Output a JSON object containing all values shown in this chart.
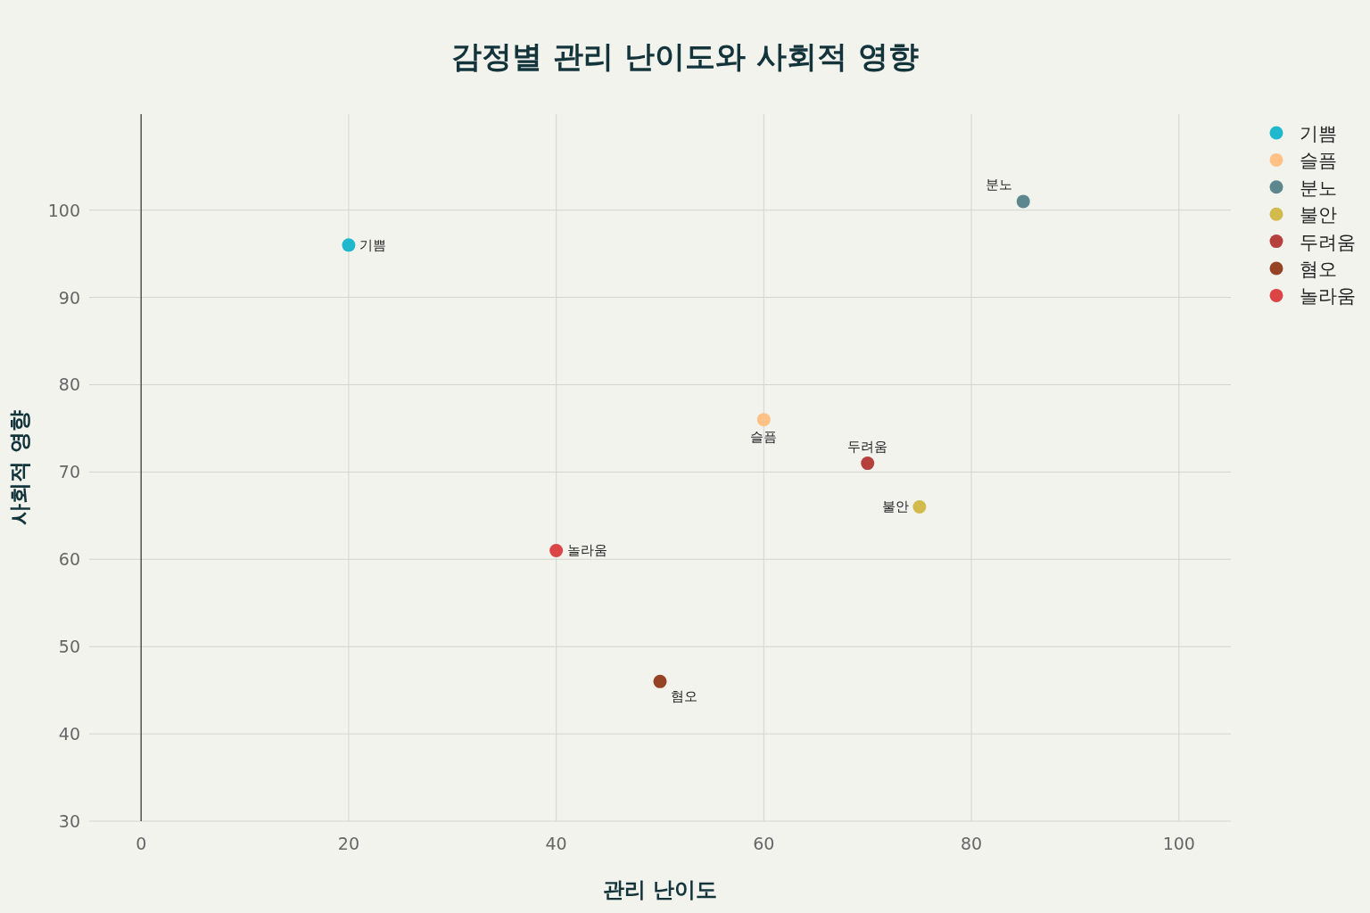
{
  "chart_data": {
    "type": "scatter",
    "title": "감정별 관리 난이도와 사회적 영향",
    "xlabel": "관리 난이도",
    "ylabel": "사회적 영향",
    "series": [
      {
        "name": "기쁨",
        "color": "#1fb8cd",
        "x": [
          20
        ],
        "values": [
          96
        ]
      },
      {
        "name": "슬픔",
        "color": "#ffc185",
        "x": [
          60
        ],
        "values": [
          76
        ]
      },
      {
        "name": "분노",
        "color": "#5d878f",
        "x": [
          85
        ],
        "values": [
          101
        ]
      },
      {
        "name": "불안",
        "color": "#d2ba4c",
        "x": [
          75
        ],
        "values": [
          66
        ]
      },
      {
        "name": "두려움",
        "color": "#b4413c",
        "x": [
          70
        ],
        "values": [
          71
        ]
      },
      {
        "name": "혐오",
        "color": "#964325",
        "x": [
          50
        ],
        "values": [
          46
        ]
      },
      {
        "name": "놀라움",
        "color": "#db4545",
        "x": [
          40
        ],
        "values": [
          61
        ]
      }
    ],
    "xlim": [
      -5,
      105
    ],
    "ylim": [
      30,
      111
    ],
    "xticks": [
      0,
      20,
      40,
      60,
      80,
      100
    ],
    "yticks": [
      30,
      40,
      50,
      60,
      70,
      80,
      90,
      100
    ],
    "grid": true,
    "legend": "top right",
    "marker": "circle"
  }
}
